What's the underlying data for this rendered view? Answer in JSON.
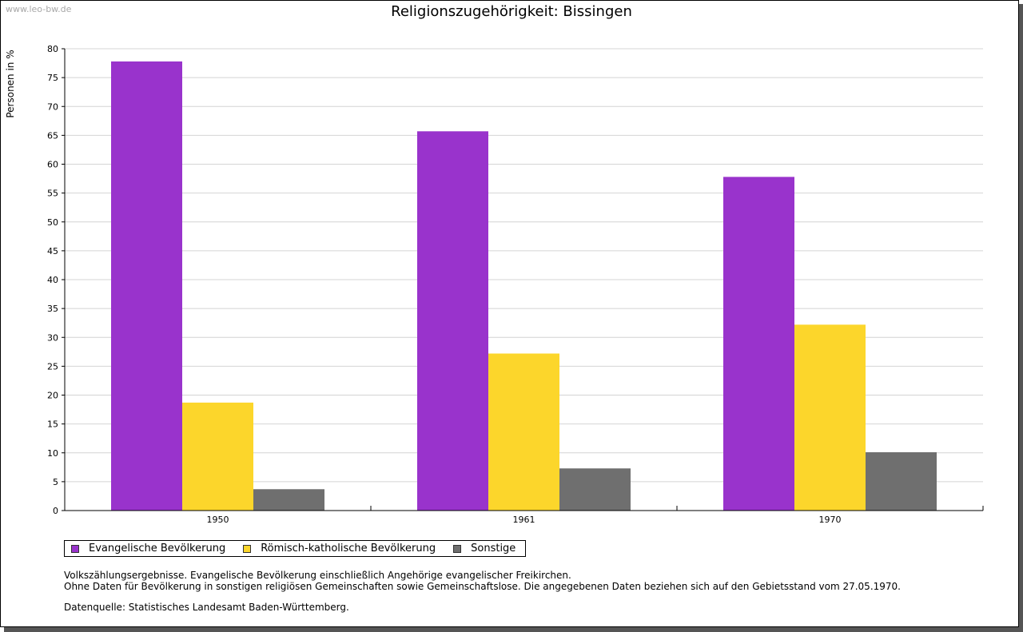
{
  "watermark": "www.leo-bw.de",
  "chart_data": {
    "type": "bar",
    "title": "Religionszugehörigkeit: Bissingen",
    "xlabel": "",
    "ylabel": "Personen in %",
    "categories": [
      "1950",
      "1961",
      "1970"
    ],
    "ylim": [
      0,
      80
    ],
    "yticks": [
      0,
      5,
      10,
      15,
      20,
      25,
      30,
      35,
      40,
      45,
      50,
      55,
      60,
      65,
      70,
      75,
      80
    ],
    "grid": true,
    "legend_position": "bottom-left",
    "series": [
      {
        "name": "Evangelische Bevölkerung",
        "color": "#9933cc",
        "values": [
          77.8,
          65.7,
          57.8
        ]
      },
      {
        "name": "Römisch-katholische Bevölkerung",
        "color": "#fcd62b",
        "values": [
          18.7,
          27.2,
          32.2
        ]
      },
      {
        "name": "Sonstige",
        "color": "#6f6f6f",
        "values": [
          3.7,
          7.3,
          10.1
        ]
      }
    ]
  },
  "notes": {
    "line1": "Volkszählungsergebnisse. Evangelische Bevölkerung einschließlich Angehörige evangelischer Freikirchen.",
    "line2": "Ohne Daten für Bevölkerung in sonstigen religiösen Gemeinschaften sowie Gemeinschaftslose. Die angegebenen Daten beziehen sich auf den Gebietsstand vom 27.05.1970.",
    "source": "Datenquelle: Statistisches Landesamt Baden-Württemberg."
  }
}
